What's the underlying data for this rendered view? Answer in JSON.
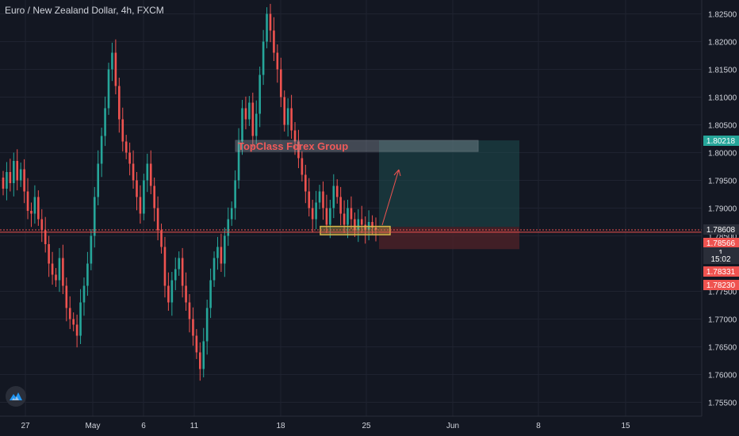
{
  "window": {
    "title": "Euro / New Zealand Dollar, 4h, FXCM"
  },
  "colors": {
    "background": "#131722",
    "grid": "#1f2330",
    "bull": "#26a69a",
    "bear": "#ef5350",
    "axis_text": "#d1d4dc",
    "target_zone": "#1d4d4f",
    "stop_zone": "#4d2228",
    "annotation_box": "#d4b74a",
    "annotation_text": "#f05a5a",
    "label_green": "#26a69a",
    "label_red": "#ef5350",
    "label_dark": "#2a2e39"
  },
  "logo": {
    "icon": "tradingview-mountain-icon"
  },
  "chart_data": {
    "type": "candlestick",
    "title": "Euro / New Zealand Dollar, 4h, FXCM",
    "ylim": [
      1.7525,
      1.8275
    ],
    "y_ticks": [
      "1.82500",
      "1.82000",
      "1.81500",
      "1.81000",
      "1.80500",
      "1.80000",
      "1.79500",
      "1.79000",
      "1.78500",
      "1.77500",
      "1.77000",
      "1.76500",
      "1.76000",
      "1.75500"
    ],
    "x_ticks": [
      "27",
      "May",
      "6",
      "11",
      "18",
      "25",
      "Jun",
      "8",
      "15"
    ],
    "price_labels": [
      {
        "text": "1.80218",
        "style": "green"
      },
      {
        "text": "1.78608",
        "style": "dark"
      },
      {
        "text": "1.78566",
        "style": "red"
      },
      {
        "text": "1",
        "style": "dark"
      },
      {
        "text": "15:02",
        "style": "dark"
      },
      {
        "text": "1.78331",
        "style": "red"
      },
      {
        "text": "1.78230",
        "style": "red"
      }
    ],
    "series": [
      {
        "value": 1.7935
      },
      {
        "value": 1.7965
      },
      {
        "value": 1.7945
      },
      {
        "value": 1.7985
      },
      {
        "value": 1.795
      },
      {
        "value": 1.797
      },
      {
        "value": 1.793
      },
      {
        "value": 1.7895
      },
      {
        "value": 1.789
      },
      {
        "value": 1.792
      },
      {
        "value": 1.788
      },
      {
        "value": 1.786
      },
      {
        "value": 1.7835
      },
      {
        "value": 1.78
      },
      {
        "value": 1.778
      },
      {
        "value": 1.777
      },
      {
        "value": 1.781
      },
      {
        "value": 1.776
      },
      {
        "value": 1.772
      },
      {
        "value": 1.77
      },
      {
        "value": 1.769
      },
      {
        "value": 1.767
      },
      {
        "value": 1.773
      },
      {
        "value": 1.776
      },
      {
        "value": 1.78
      },
      {
        "value": 1.785
      },
      {
        "value": 1.792
      },
      {
        "value": 1.798
      },
      {
        "value": 1.803
      },
      {
        "value": 1.808
      },
      {
        "value": 1.815
      },
      {
        "value": 1.818
      },
      {
        "value": 1.812
      },
      {
        "value": 1.806
      },
      {
        "value": 1.802
      },
      {
        "value": 1.8
      },
      {
        "value": 1.798
      },
      {
        "value": 1.795
      },
      {
        "value": 1.792
      },
      {
        "value": 1.789
      },
      {
        "value": 1.795
      },
      {
        "value": 1.798
      },
      {
        "value": 1.794
      },
      {
        "value": 1.79
      },
      {
        "value": 1.786
      },
      {
        "value": 1.783
      },
      {
        "value": 1.776
      },
      {
        "value": 1.773
      },
      {
        "value": 1.777
      },
      {
        "value": 1.779
      },
      {
        "value": 1.781
      },
      {
        "value": 1.776
      },
      {
        "value": 1.773
      },
      {
        "value": 1.77
      },
      {
        "value": 1.767
      },
      {
        "value": 1.764
      },
      {
        "value": 1.761
      },
      {
        "value": 1.766
      },
      {
        "value": 1.772
      },
      {
        "value": 1.777
      },
      {
        "value": 1.781
      },
      {
        "value": 1.783
      },
      {
        "value": 1.78
      },
      {
        "value": 1.785
      },
      {
        "value": 1.788
      },
      {
        "value": 1.79
      },
      {
        "value": 1.795
      },
      {
        "value": 1.802
      },
      {
        "value": 1.808
      },
      {
        "value": 1.806
      },
      {
        "value": 1.809
      },
      {
        "value": 1.803
      },
      {
        "value": 1.807
      },
      {
        "value": 1.814
      },
      {
        "value": 1.82
      },
      {
        "value": 1.825
      },
      {
        "value": 1.822
      },
      {
        "value": 1.818
      },
      {
        "value": 1.815
      },
      {
        "value": 1.81
      },
      {
        "value": 1.805
      },
      {
        "value": 1.808
      },
      {
        "value": 1.804
      },
      {
        "value": 1.802
      },
      {
        "value": 1.799
      },
      {
        "value": 1.796
      },
      {
        "value": 1.793
      },
      {
        "value": 1.79
      },
      {
        "value": 1.788
      },
      {
        "value": 1.791
      },
      {
        "value": 1.793
      },
      {
        "value": 1.79
      },
      {
        "value": 1.787
      },
      {
        "value": 1.79
      },
      {
        "value": 1.794
      },
      {
        "value": 1.792
      },
      {
        "value": 1.789
      },
      {
        "value": 1.787
      },
      {
        "value": 1.79
      },
      {
        "value": 1.788
      },
      {
        "value": 1.786
      },
      {
        "value": 1.788
      },
      {
        "value": 1.787
      },
      {
        "value": 1.786
      },
      {
        "value": 1.7875
      },
      {
        "value": 1.7865
      },
      {
        "value": 1.7861
      }
    ],
    "annotations": {
      "support_box": {
        "from": 1.7852,
        "to": 1.7867
      },
      "target_zone": {
        "from": 1.7866,
        "to": 1.8022
      },
      "stop_zone": {
        "from": 1.7826,
        "to": 1.7866
      },
      "label_box": {
        "text": "TopClass Forex Group",
        "from": 1.8002,
        "to": 1.8022
      },
      "horizontal_line": {
        "value": 1.78566
      },
      "dotted_line": {
        "value": 1.78608
      }
    }
  }
}
